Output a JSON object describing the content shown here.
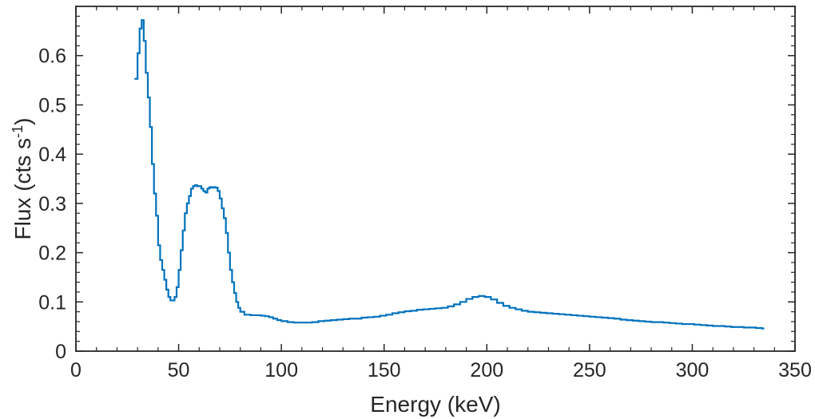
{
  "chart_data": {
    "type": "line",
    "line_style": "step",
    "title": "",
    "xlabel": "Energy (keV)",
    "ylabel": {
      "base": "Flux (cts s",
      "sup": "-1",
      "close": ")"
    },
    "xlim": [
      0,
      350
    ],
    "ylim": [
      0,
      0.7
    ],
    "xticks": [
      0,
      50,
      100,
      150,
      200,
      250,
      300,
      350
    ],
    "xtick_labels": [
      "0",
      "50",
      "100",
      "150",
      "200",
      "250",
      "300",
      "350"
    ],
    "yticks": [
      0,
      0.1,
      0.2,
      0.3,
      0.4,
      0.5,
      0.6
    ],
    "ytick_labels": [
      "0",
      "0.1",
      "0.2",
      "0.3",
      "0.4",
      "0.5",
      "0.6"
    ],
    "minor_ticks": true,
    "grid": false,
    "line_color": "#0072BD",
    "axis_color": "#262626",
    "series": [
      {
        "x": [
          28.5,
          30,
          31,
          32,
          33,
          34,
          35,
          36,
          37,
          38,
          39,
          40,
          41,
          42,
          43,
          44,
          45,
          46,
          47,
          48,
          49,
          50,
          51,
          52,
          53,
          54,
          55,
          56,
          57,
          58,
          59,
          60,
          61,
          62,
          63,
          64,
          65,
          66,
          67,
          68,
          69,
          70,
          71,
          72,
          73,
          74,
          75,
          76,
          77,
          78,
          79,
          80,
          82,
          85,
          88,
          90,
          92,
          94,
          96,
          98,
          100,
          103,
          106,
          109,
          112,
          115,
          118,
          121,
          124,
          127,
          130,
          133,
          136,
          139,
          142,
          145,
          148,
          151,
          154,
          157,
          160,
          163,
          166,
          169,
          172,
          175,
          178,
          181,
          184,
          187,
          190,
          193,
          196,
          199,
          202,
          205,
          208,
          211,
          214,
          217,
          220,
          223,
          226,
          229,
          232,
          235,
          238,
          241,
          244,
          247,
          250,
          253,
          256,
          259,
          262,
          265,
          268,
          271,
          274,
          277,
          280,
          283,
          286,
          289,
          292,
          295,
          298,
          301,
          304,
          307,
          310,
          313,
          316,
          319,
          322,
          325,
          328,
          331,
          334
        ],
        "y": [
          0.553,
          0.605,
          0.655,
          0.672,
          0.63,
          0.565,
          0.515,
          0.455,
          0.38,
          0.32,
          0.275,
          0.215,
          0.185,
          0.165,
          0.145,
          0.125,
          0.11,
          0.103,
          0.103,
          0.11,
          0.13,
          0.165,
          0.205,
          0.245,
          0.28,
          0.3,
          0.315,
          0.33,
          0.335,
          0.337,
          0.335,
          0.335,
          0.33,
          0.325,
          0.322,
          0.33,
          0.333,
          0.332,
          0.333,
          0.332,
          0.325,
          0.31,
          0.29,
          0.27,
          0.24,
          0.2,
          0.165,
          0.14,
          0.118,
          0.1,
          0.088,
          0.08,
          0.074,
          0.073,
          0.073,
          0.072,
          0.071,
          0.069,
          0.066,
          0.063,
          0.061,
          0.059,
          0.058,
          0.058,
          0.058,
          0.059,
          0.061,
          0.062,
          0.063,
          0.064,
          0.065,
          0.066,
          0.066,
          0.068,
          0.069,
          0.07,
          0.072,
          0.074,
          0.077,
          0.079,
          0.081,
          0.082,
          0.084,
          0.085,
          0.086,
          0.087,
          0.088,
          0.091,
          0.095,
          0.1,
          0.106,
          0.11,
          0.112,
          0.11,
          0.105,
          0.098,
          0.092,
          0.088,
          0.085,
          0.082,
          0.08,
          0.079,
          0.078,
          0.077,
          0.076,
          0.075,
          0.074,
          0.073,
          0.072,
          0.071,
          0.07,
          0.069,
          0.068,
          0.067,
          0.066,
          0.064,
          0.063,
          0.062,
          0.061,
          0.06,
          0.059,
          0.059,
          0.058,
          0.057,
          0.056,
          0.055,
          0.055,
          0.054,
          0.053,
          0.052,
          0.051,
          0.051,
          0.05,
          0.049,
          0.049,
          0.048,
          0.048,
          0.047,
          0.046
        ]
      }
    ]
  }
}
